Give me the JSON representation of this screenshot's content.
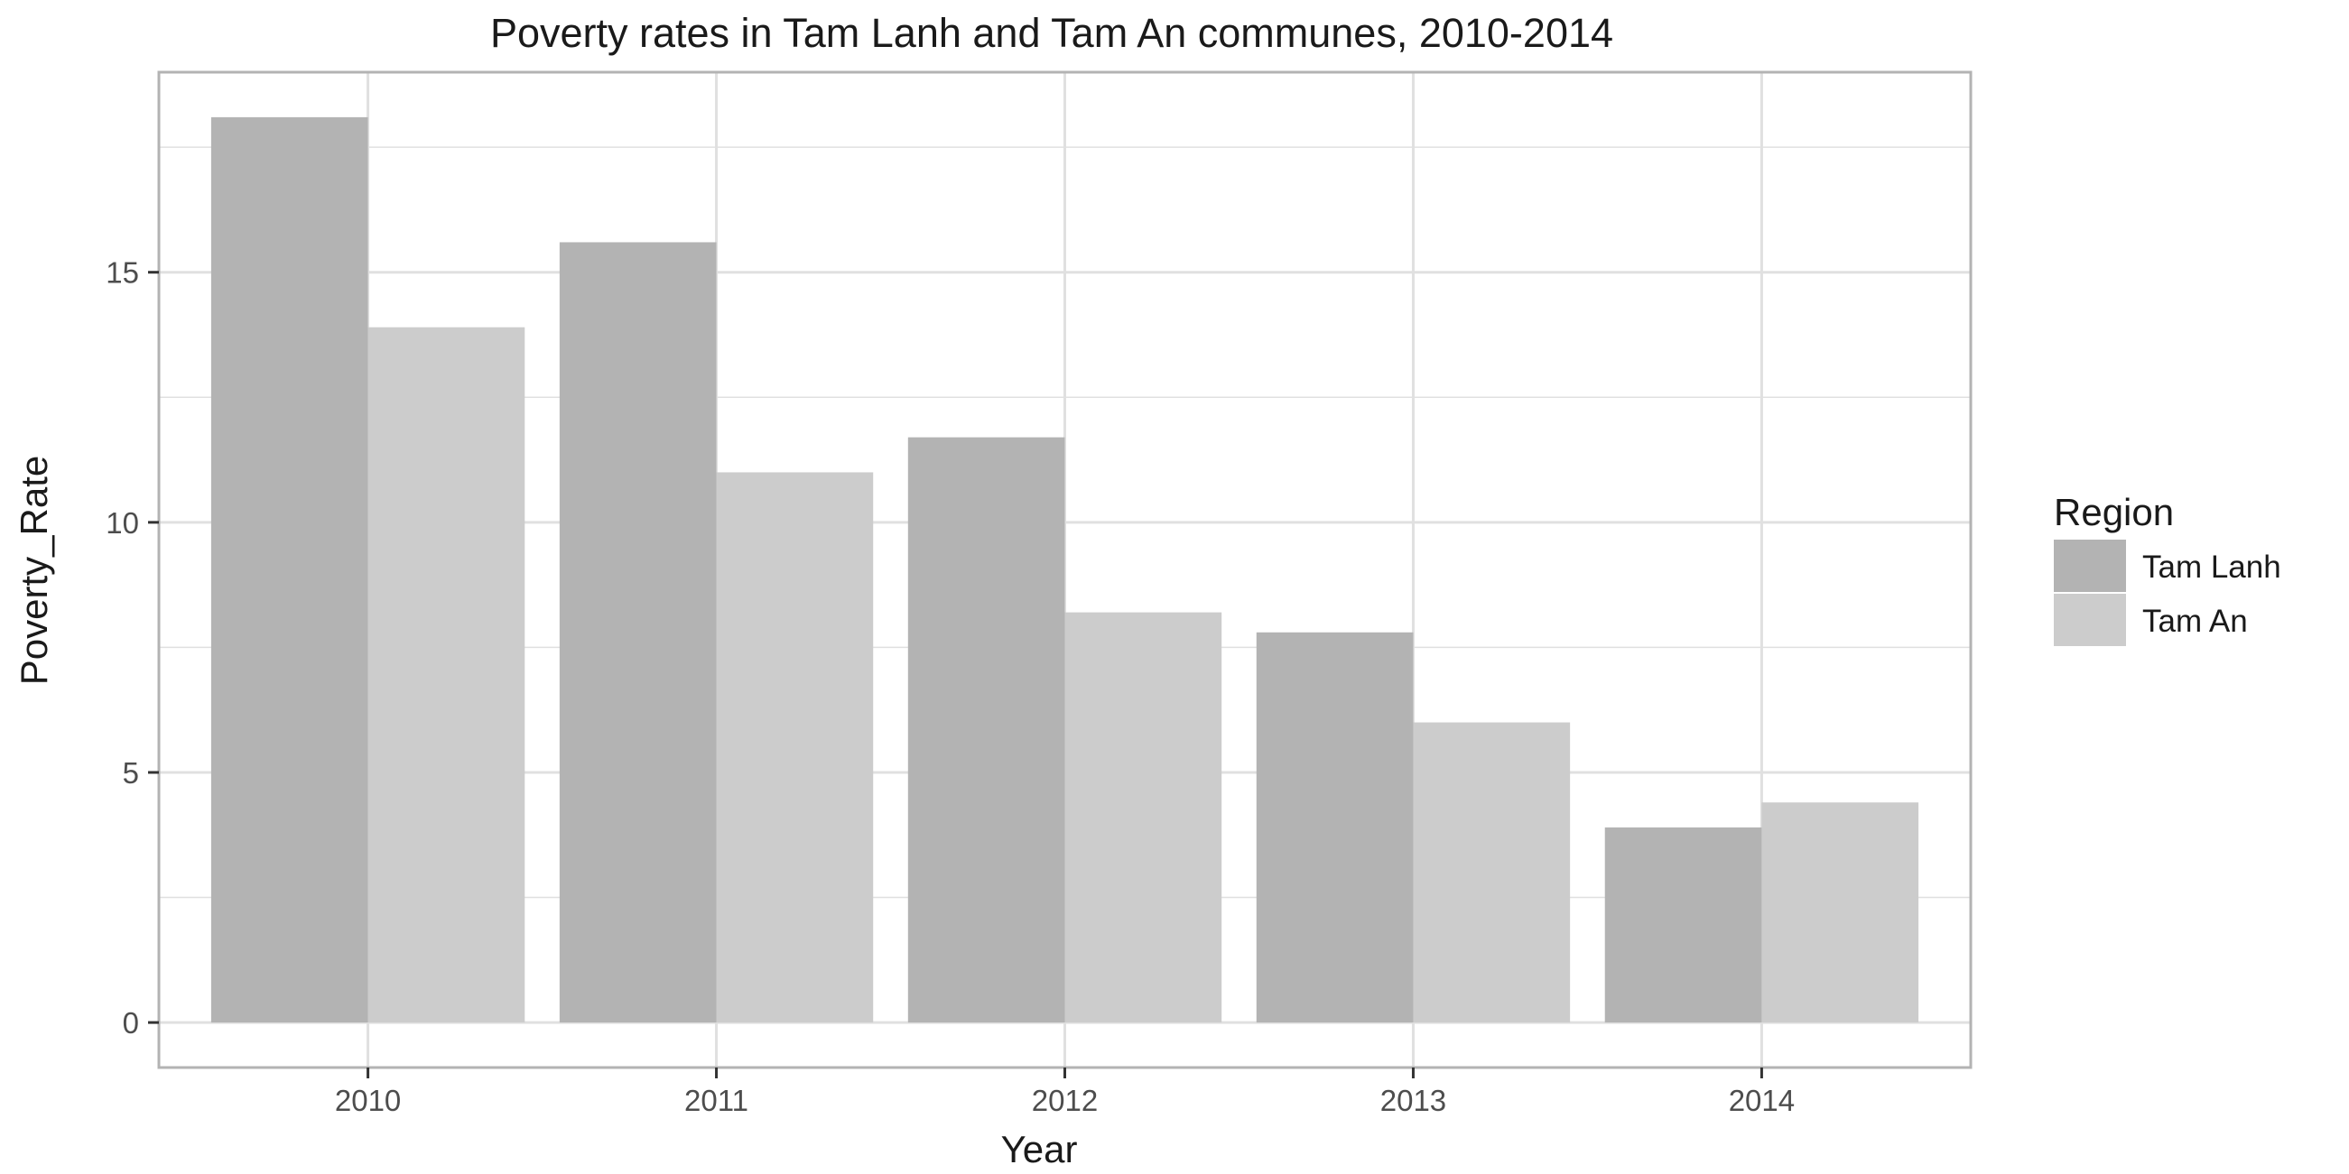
{
  "chart_data": {
    "type": "bar",
    "title": "Poverty rates in Tam Lanh and Tam An communes, 2010-2014",
    "xlabel": "Year",
    "ylabel": "Poverty_Rate",
    "categories": [
      "2010",
      "2011",
      "2012",
      "2013",
      "2014"
    ],
    "series": [
      {
        "name": "Tam Lanh",
        "values": [
          18.1,
          15.6,
          11.7,
          7.8,
          3.9
        ],
        "color": "#b3b3b3"
      },
      {
        "name": "Tam An",
        "values": [
          13.9,
          11.0,
          8.2,
          6.0,
          4.4
        ],
        "color": "#cccccc"
      }
    ],
    "yticks": [
      0,
      5,
      10,
      15
    ],
    "ylim": [
      -0.9,
      19.0
    ],
    "grid": true,
    "legend": {
      "title": "Region",
      "position": "right"
    },
    "colors": {
      "panel_border": "#b3b3b3",
      "grid": "#e0e0e0"
    }
  }
}
